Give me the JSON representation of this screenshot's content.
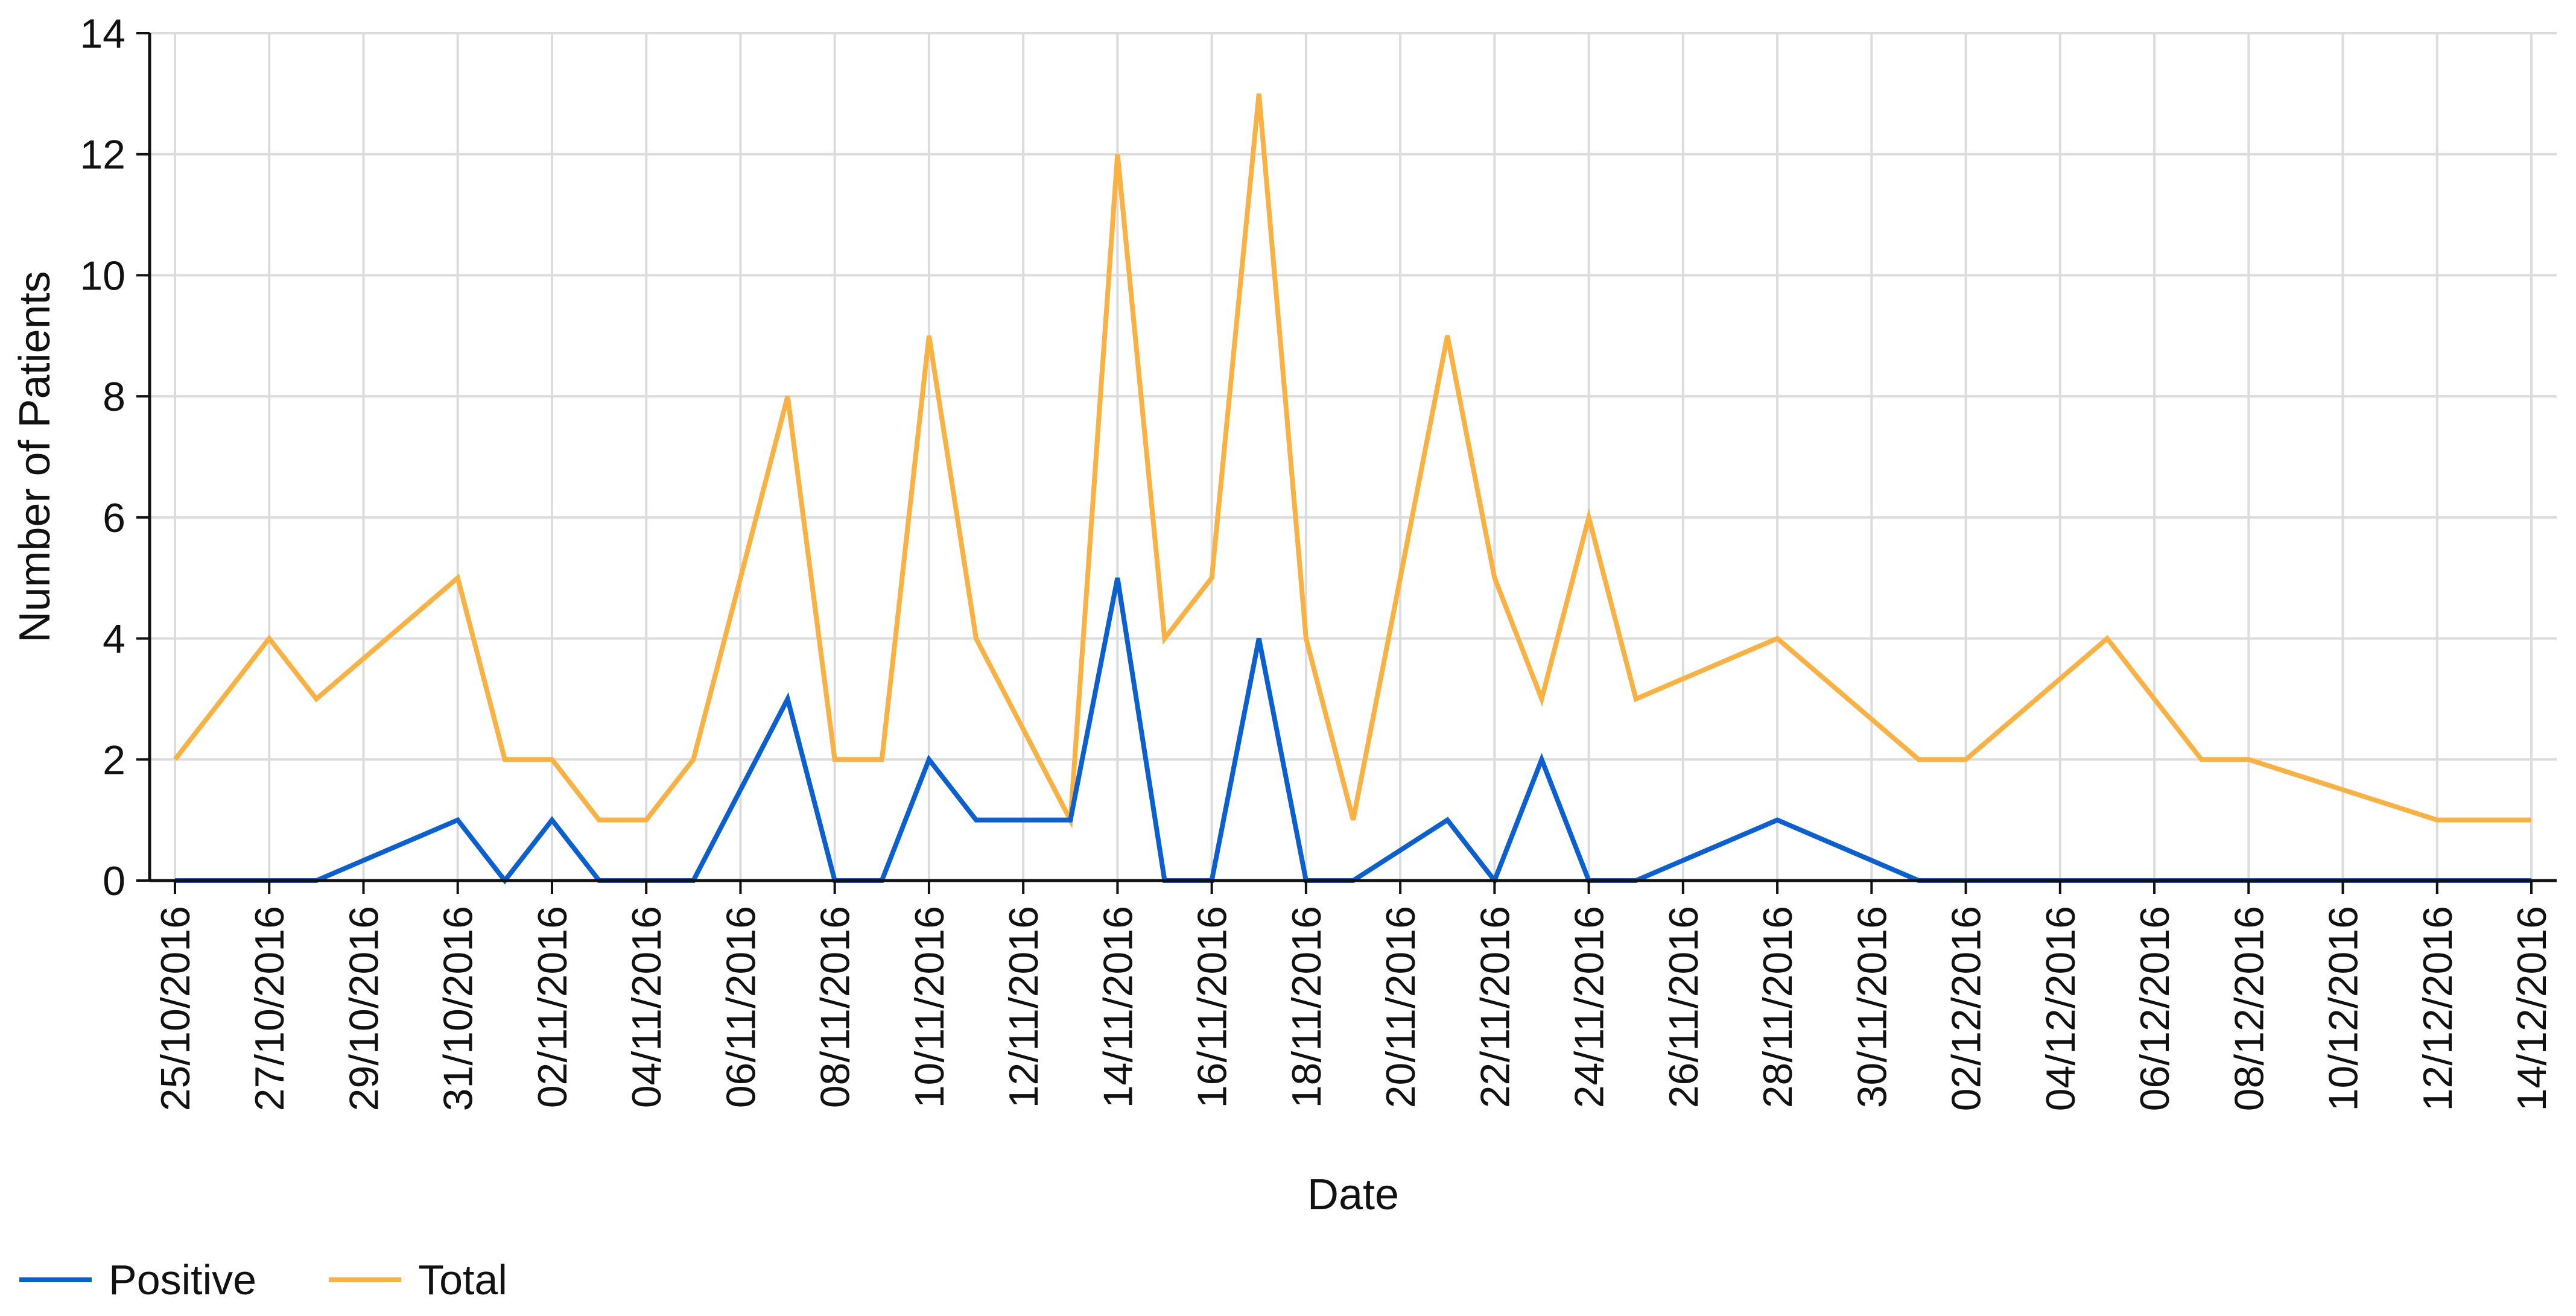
{
  "chart_data": {
    "type": "line",
    "title": "",
    "xlabel": "Date",
    "ylabel": "Number of Patients",
    "ylim": [
      0,
      14
    ],
    "yticks": [
      0,
      2,
      4,
      6,
      8,
      10,
      12,
      14
    ],
    "grid": true,
    "legend_position": "bottom-left",
    "xrange": [
      "25/10/2016",
      "14/12/2016"
    ],
    "xtick_labels": [
      "25/10/2016",
      "27/10/2016",
      "29/10/2016",
      "31/10/2016",
      "02/11/2016",
      "04/11/2016",
      "06/11/2016",
      "08/11/2016",
      "10/11/2016",
      "12/11/2016",
      "14/11/2016",
      "16/11/2016",
      "18/11/2016",
      "20/11/2016",
      "22/11/2016",
      "24/11/2016",
      "26/11/2016",
      "28/11/2016",
      "30/11/2016",
      "02/12/2016",
      "04/12/2016",
      "06/12/2016",
      "08/12/2016",
      "10/12/2016",
      "12/12/2016",
      "14/12/2016"
    ],
    "series": [
      {
        "name": "Positive",
        "color": "#0a5fd1",
        "points": [
          {
            "x": "25/10/2016",
            "y": 0
          },
          {
            "x": "27/10/2016",
            "y": 0
          },
          {
            "x": "28/10/2016",
            "y": 0
          },
          {
            "x": "31/10/2016",
            "y": 1
          },
          {
            "x": "01/11/2016",
            "y": 0
          },
          {
            "x": "02/11/2016",
            "y": 1
          },
          {
            "x": "03/11/2016",
            "y": 0
          },
          {
            "x": "04/11/2016",
            "y": 0
          },
          {
            "x": "05/11/2016",
            "y": 0
          },
          {
            "x": "07/11/2016",
            "y": 3
          },
          {
            "x": "08/11/2016",
            "y": 0
          },
          {
            "x": "09/11/2016",
            "y": 0
          },
          {
            "x": "10/11/2016",
            "y": 2
          },
          {
            "x": "11/11/2016",
            "y": 1
          },
          {
            "x": "13/11/2016",
            "y": 1
          },
          {
            "x": "14/11/2016",
            "y": 5
          },
          {
            "x": "15/11/2016",
            "y": 0
          },
          {
            "x": "16/11/2016",
            "y": 0
          },
          {
            "x": "17/11/2016",
            "y": 4
          },
          {
            "x": "18/11/2016",
            "y": 0
          },
          {
            "x": "19/11/2016",
            "y": 0
          },
          {
            "x": "21/11/2016",
            "y": 1
          },
          {
            "x": "22/11/2016",
            "y": 0
          },
          {
            "x": "23/11/2016",
            "y": 2
          },
          {
            "x": "24/11/2016",
            "y": 0
          },
          {
            "x": "25/11/2016",
            "y": 0
          },
          {
            "x": "28/11/2016",
            "y": 1
          },
          {
            "x": "01/12/2016",
            "y": 0
          },
          {
            "x": "02/12/2016",
            "y": 0
          },
          {
            "x": "05/12/2016",
            "y": 0
          },
          {
            "x": "07/12/2016",
            "y": 0
          },
          {
            "x": "08/12/2016",
            "y": 0
          },
          {
            "x": "12/12/2016",
            "y": 0
          },
          {
            "x": "14/12/2016",
            "y": 0
          }
        ]
      },
      {
        "name": "Total",
        "color": "#f9b142",
        "points": [
          {
            "x": "25/10/2016",
            "y": 2
          },
          {
            "x": "27/10/2016",
            "y": 4
          },
          {
            "x": "28/10/2016",
            "y": 3
          },
          {
            "x": "31/10/2016",
            "y": 5
          },
          {
            "x": "01/11/2016",
            "y": 2
          },
          {
            "x": "02/11/2016",
            "y": 2
          },
          {
            "x": "03/11/2016",
            "y": 1
          },
          {
            "x": "04/11/2016",
            "y": 1
          },
          {
            "x": "05/11/2016",
            "y": 2
          },
          {
            "x": "07/11/2016",
            "y": 8
          },
          {
            "x": "08/11/2016",
            "y": 2
          },
          {
            "x": "09/11/2016",
            "y": 2
          },
          {
            "x": "10/11/2016",
            "y": 9
          },
          {
            "x": "11/11/2016",
            "y": 4
          },
          {
            "x": "13/11/2016",
            "y": 1
          },
          {
            "x": "14/11/2016",
            "y": 12
          },
          {
            "x": "15/11/2016",
            "y": 4
          },
          {
            "x": "16/11/2016",
            "y": 5
          },
          {
            "x": "17/11/2016",
            "y": 13
          },
          {
            "x": "18/11/2016",
            "y": 4
          },
          {
            "x": "19/11/2016",
            "y": 1
          },
          {
            "x": "21/11/2016",
            "y": 9
          },
          {
            "x": "22/11/2016",
            "y": 5
          },
          {
            "x": "23/11/2016",
            "y": 3
          },
          {
            "x": "24/11/2016",
            "y": 6
          },
          {
            "x": "25/11/2016",
            "y": 3
          },
          {
            "x": "28/11/2016",
            "y": 4
          },
          {
            "x": "01/12/2016",
            "y": 2
          },
          {
            "x": "02/12/2016",
            "y": 2
          },
          {
            "x": "05/12/2016",
            "y": 4
          },
          {
            "x": "07/12/2016",
            "y": 2
          },
          {
            "x": "08/12/2016",
            "y": 2
          },
          {
            "x": "12/12/2016",
            "y": 1
          },
          {
            "x": "14/12/2016",
            "y": 1
          }
        ]
      }
    ]
  }
}
